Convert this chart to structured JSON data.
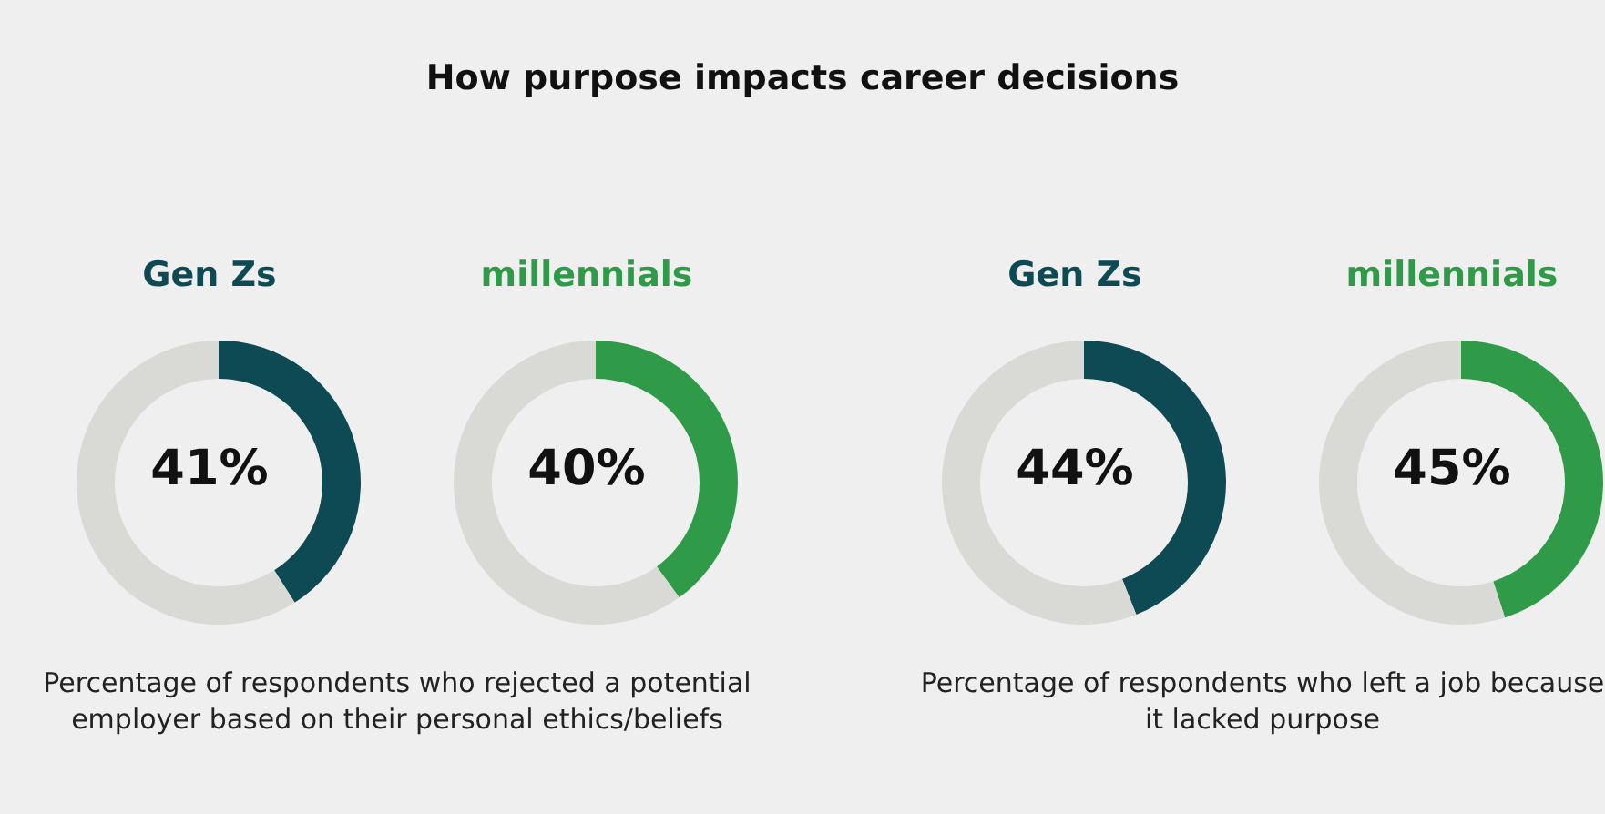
{
  "chart_data": [
    {
      "type": "other",
      "title": "How purpose impacts career decisions"
    },
    {
      "type": "donut",
      "title": "Gen Zs",
      "categories": [
        null,
        null
      ],
      "values": [
        41,
        59
      ],
      "colors": [
        "#0e4a53",
        "#d9d9d5"
      ],
      "annotations": [
        "41%",
        "Percentage of respondents who rejected a potential employer based on their personal ethics/beliefs"
      ]
    },
    {
      "type": "donut",
      "title": "millennials",
      "categories": [
        null,
        null
      ],
      "values": [
        40,
        60
      ],
      "colors": [
        "#2f9a48",
        "#d9d9d5"
      ],
      "annotations": [
        "40%"
      ]
    },
    {
      "type": "donut",
      "title": "Gen Zs",
      "categories": [
        null,
        null
      ],
      "values": [
        44,
        56
      ],
      "colors": [
        "#0e4a53",
        "#d9d9d5"
      ],
      "annotations": [
        "44%",
        "Percentage of respondents who left a job because it lacked purpose"
      ]
    },
    {
      "type": "donut",
      "title": "millennials",
      "categories": [
        null,
        null
      ],
      "values": [
        45,
        55
      ],
      "colors": [
        "#2f9a48",
        "#d9d9d5"
      ],
      "annotations": [
        "45%"
      ]
    }
  ]
}
